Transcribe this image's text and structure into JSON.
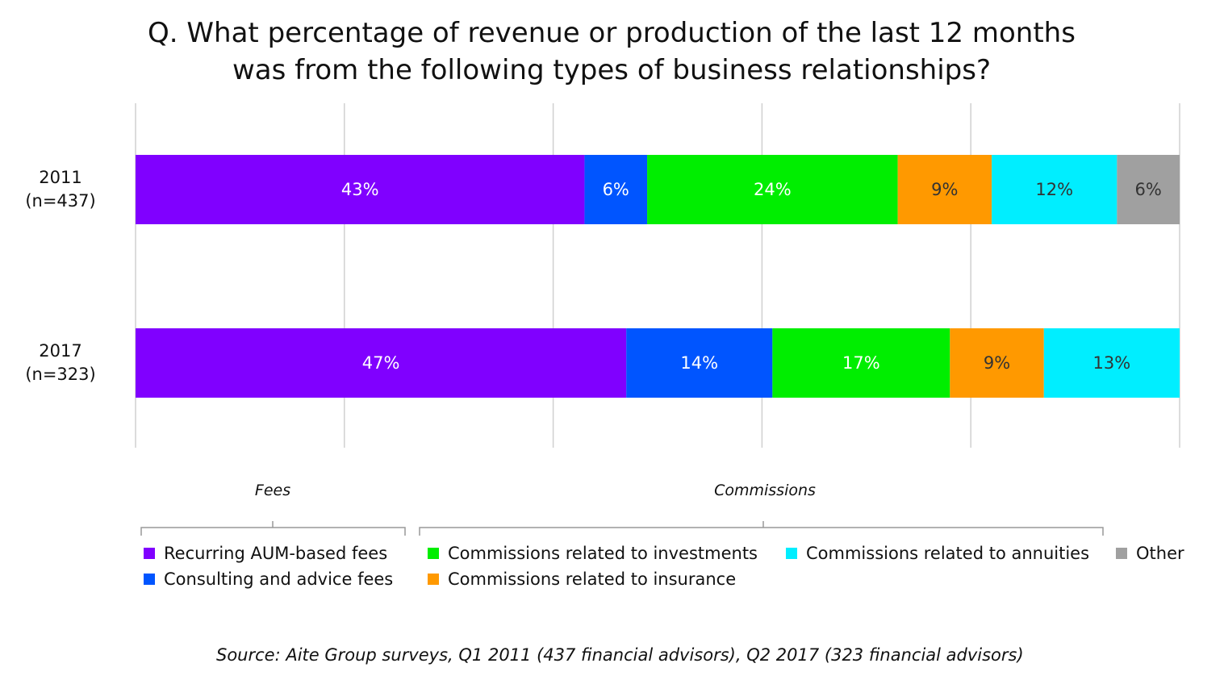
{
  "chart_data": {
    "type": "stacked-bar-horizontal",
    "title": "Q. What percentage of revenue or production of the last 12 months was from the following types of business relationships?",
    "categories": [
      "2011\n(n=437)",
      "2017\n(n=323)"
    ],
    "series": [
      {
        "name": "Recurring AUM-based fees",
        "color": "#8000ff",
        "values": [
          43,
          47
        ],
        "value_labels": [
          "43%",
          "47%"
        ]
      },
      {
        "name": "Consulting and advice fees",
        "color": "#0055ff",
        "values": [
          6,
          14
        ],
        "value_labels": [
          "6%",
          "14%"
        ]
      },
      {
        "name": "Commissions related to investments",
        "color": "#00ee00",
        "values": [
          24,
          17
        ],
        "value_labels": [
          "24%",
          "17%"
        ]
      },
      {
        "name": "Commissions related to insurance",
        "color": "#ff9900",
        "values": [
          9,
          9
        ],
        "value_labels": [
          "9%",
          "9%"
        ]
      },
      {
        "name": "Commissions related to annuities",
        "color": "#00eeff",
        "values": [
          12,
          13
        ],
        "value_labels": [
          "12%",
          "13%"
        ]
      },
      {
        "name": "Other",
        "color": "#a0a0a0",
        "values": [
          6,
          null
        ],
        "value_labels": [
          "6%",
          null
        ]
      }
    ],
    "xlim": [
      0,
      100
    ],
    "xticks": [
      0,
      20,
      40,
      60,
      80,
      100
    ],
    "grid": true,
    "legend_groups": [
      "Fees",
      "Commissions"
    ],
    "source": "Source: Aite Group surveys, Q1 2011 (437 financial advisors), Q2 2017 (323 financial advisors)"
  }
}
